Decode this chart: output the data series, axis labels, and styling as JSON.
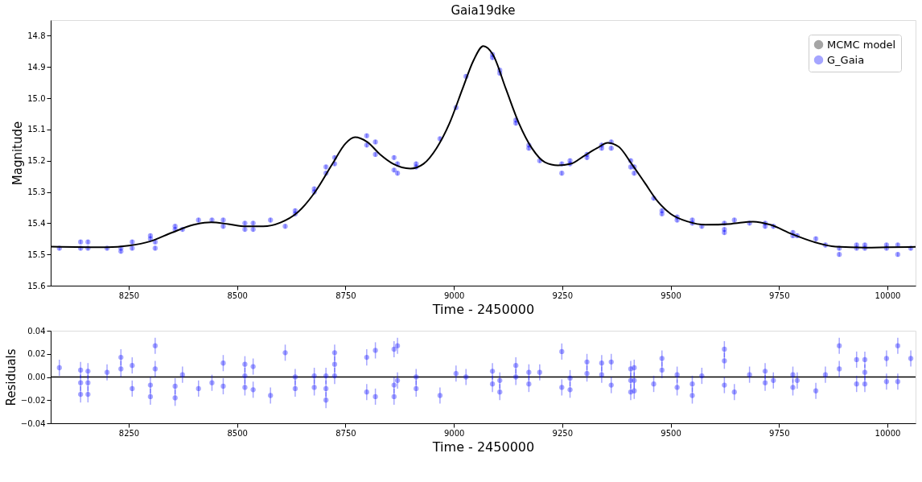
{
  "chart_data": [
    {
      "type": "scatter",
      "title": "Gaia19dke",
      "xlabel": "Time - 2450000",
      "ylabel": "Magnitude",
      "legend": "top right",
      "xlim": [
        8070,
        10065
      ],
      "xticks": [
        8250,
        8500,
        8750,
        9000,
        9250,
        9500,
        9750,
        10000
      ],
      "ylim": [
        15.6,
        14.75
      ],
      "yticks": [
        14.8,
        14.9,
        {
          "value": 15.0,
          "label": "15.0"
        },
        15.1,
        15.2,
        15.3,
        15.4,
        15.5,
        15.6
      ],
      "series": [
        {
          "name": "MCMC model",
          "type": "line",
          "color": "#000000",
          "line_style": "solid",
          "x": [
            8070,
            8200,
            8250,
            8300,
            8350,
            8400,
            8440,
            8480,
            8520,
            8560,
            8600,
            8640,
            8680,
            8720,
            8750,
            8772,
            8800,
            8830,
            8860,
            8900,
            8930,
            8960,
            8990,
            9020,
            9045,
            9068,
            9090,
            9120,
            9150,
            9180,
            9210,
            9240,
            9270,
            9300,
            9330,
            9355,
            9380,
            9410,
            9440,
            9470,
            9500,
            9540,
            9580,
            9640,
            9690,
            9730,
            9780,
            9830,
            9880,
            9950,
            10000,
            10065
          ],
          "values": [
            15.475,
            15.477,
            15.472,
            15.458,
            15.43,
            15.405,
            15.397,
            15.403,
            15.41,
            15.41,
            15.398,
            15.365,
            15.3,
            15.21,
            15.145,
            15.125,
            15.14,
            15.18,
            15.21,
            15.225,
            15.21,
            15.16,
            15.08,
            14.97,
            14.88,
            14.833,
            14.86,
            14.97,
            15.08,
            15.16,
            15.205,
            15.215,
            15.21,
            15.185,
            15.16,
            15.143,
            15.155,
            15.21,
            15.27,
            15.33,
            15.37,
            15.395,
            15.405,
            15.402,
            15.395,
            15.405,
            15.435,
            15.46,
            15.475,
            15.478,
            15.477,
            15.476
          ]
        },
        {
          "name": "G_Gaia",
          "marker": "circle",
          "color": "#0000ff",
          "x": [
            8090,
            8139,
            8139,
            8156,
            8156,
            8200,
            8232,
            8232,
            8258,
            8258,
            8300,
            8300,
            8311,
            8311,
            8357,
            8357,
            8374,
            8411,
            8442,
            8468,
            8468,
            8518,
            8518,
            8537,
            8537,
            8577,
            8611,
            8634,
            8634,
            8678,
            8678,
            8705,
            8705,
            8725,
            8725,
            8799,
            8799,
            8819,
            8819,
            8862,
            8862,
            8870,
            8870,
            8913,
            8913,
            8968,
            9005,
            9028,
            9089,
            9089,
            9106,
            9106,
            9143,
            9143,
            9173,
            9173,
            9198,
            9249,
            9249,
            9268,
            9268,
            9307,
            9307,
            9341,
            9341,
            9363,
            9363,
            9408,
            9408,
            9416,
            9416,
            9461,
            9480,
            9480,
            9515,
            9515,
            9550,
            9550,
            9572,
            9624,
            9624,
            9624,
            9647,
            9682,
            9718,
            9718,
            9737,
            9782,
            9782,
            9792,
            9835,
            9857,
            9889,
            9889,
            9929,
            9929,
            9948,
            9948,
            9998,
            9998,
            10024,
            10024,
            10054
          ],
          "values": [
            15.48,
            15.46,
            15.48,
            15.46,
            15.48,
            15.48,
            15.49,
            15.48,
            15.46,
            15.48,
            15.44,
            15.45,
            15.46,
            15.48,
            15.41,
            15.42,
            15.42,
            15.39,
            15.39,
            15.39,
            15.41,
            15.4,
            15.42,
            15.4,
            15.42,
            15.39,
            15.41,
            15.36,
            15.37,
            15.29,
            15.3,
            15.22,
            15.24,
            15.19,
            15.21,
            15.12,
            15.15,
            15.14,
            15.18,
            15.19,
            15.23,
            15.21,
            15.24,
            15.21,
            15.22,
            15.13,
            15.03,
            14.93,
            14.86,
            14.87,
            14.91,
            14.92,
            15.07,
            15.08,
            15.15,
            15.16,
            15.2,
            15.21,
            15.24,
            15.2,
            15.21,
            15.18,
            15.19,
            15.15,
            15.16,
            15.14,
            15.16,
            15.2,
            15.22,
            15.22,
            15.24,
            15.32,
            15.36,
            15.37,
            15.38,
            15.39,
            15.39,
            15.4,
            15.41,
            15.4,
            15.42,
            15.43,
            15.39,
            15.4,
            15.4,
            15.41,
            15.41,
            15.43,
            15.44,
            15.44,
            15.45,
            15.47,
            15.48,
            15.5,
            15.47,
            15.48,
            15.47,
            15.48,
            15.47,
            15.48,
            15.47,
            15.5,
            15.48
          ],
          "errors": [
            0.007,
            0.007,
            0.007,
            0.007,
            0.007,
            0.007,
            0.007,
            0.007,
            0.007,
            0.007,
            0.007,
            0.007,
            0.007,
            0.007,
            0.007,
            0.007,
            0.007,
            0.007,
            0.007,
            0.007,
            0.007,
            0.007,
            0.007,
            0.007,
            0.007,
            0.007,
            0.007,
            0.007,
            0.007,
            0.007,
            0.007,
            0.007,
            0.007,
            0.007,
            0.007,
            0.007,
            0.007,
            0.007,
            0.007,
            0.007,
            0.007,
            0.007,
            0.007,
            0.007,
            0.007,
            0.007,
            0.007,
            0.007,
            0.007,
            0.007,
            0.007,
            0.007,
            0.007,
            0.007,
            0.007,
            0.007,
            0.007,
            0.007,
            0.007,
            0.007,
            0.007,
            0.007,
            0.007,
            0.007,
            0.007,
            0.007,
            0.007,
            0.007,
            0.007,
            0.007,
            0.007,
            0.007,
            0.007,
            0.007,
            0.007,
            0.007,
            0.007,
            0.007,
            0.007,
            0.007,
            0.007,
            0.007,
            0.007,
            0.007,
            0.007,
            0.007,
            0.007,
            0.007,
            0.007,
            0.007,
            0.007,
            0.007,
            0.007,
            0.007,
            0.007,
            0.007,
            0.007,
            0.007,
            0.007,
            0.007,
            0.007,
            0.007,
            0.007
          ]
        }
      ]
    },
    {
      "type": "scatter",
      "xlabel": "Time - 2450000",
      "ylabel": "Residuals",
      "xlim": [
        8070,
        10065
      ],
      "xticks": [
        8250,
        8500,
        8750,
        9000,
        9250,
        9500,
        9750,
        10000
      ],
      "ylim": [
        -0.04,
        0.04
      ],
      "yticks": [
        {
          "value": -0.04,
          "label": "−0.04"
        },
        {
          "value": -0.02,
          "label": "−0.02"
        },
        {
          "value": 0,
          "label": "0.00"
        },
        {
          "value": 0.02,
          "label": "0.02"
        },
        {
          "value": 0.04,
          "label": "0.04"
        }
      ],
      "ref_lines": [
        {
          "axis": "y",
          "value": 0,
          "color": "#000000",
          "line_style": "solid"
        }
      ],
      "series": [
        {
          "marker": "circle",
          "color": "#0000ff",
          "x": [
            8090,
            8139,
            8139,
            8139,
            8156,
            8156,
            8156,
            8200,
            8232,
            8232,
            8258,
            8258,
            8300,
            8300,
            8311,
            8311,
            8357,
            8357,
            8374,
            8411,
            8442,
            8468,
            8468,
            8518,
            8518,
            8518,
            8537,
            8537,
            8577,
            8611,
            8634,
            8634,
            8678,
            8678,
            8705,
            8705,
            8705,
            8725,
            8725,
            8725,
            8799,
            8799,
            8819,
            8819,
            8862,
            8862,
            8862,
            8870,
            8870,
            8913,
            8913,
            8968,
            9005,
            9028,
            9089,
            9089,
            9106,
            9106,
            9143,
            9143,
            9173,
            9173,
            9198,
            9249,
            9249,
            9268,
            9268,
            9307,
            9307,
            9341,
            9341,
            9363,
            9363,
            9408,
            9408,
            9408,
            9416,
            9416,
            9416,
            9461,
            9480,
            9480,
            9515,
            9515,
            9550,
            9550,
            9572,
            9624,
            9624,
            9624,
            9647,
            9682,
            9718,
            9718,
            9737,
            9782,
            9782,
            9792,
            9835,
            9857,
            9889,
            9889,
            9929,
            9929,
            9948,
            9948,
            9948,
            9998,
            9998,
            10024,
            10024,
            10054
          ],
          "values": [
            0.008,
            0.006,
            -0.005,
            -0.015,
            0.005,
            -0.005,
            -0.015,
            0.004,
            0.017,
            0.007,
            0.01,
            -0.01,
            -0.007,
            -0.017,
            0.027,
            0.007,
            -0.008,
            -0.018,
            0.002,
            -0.01,
            -0.005,
            0.012,
            -0.008,
            0.011,
            0.001,
            -0.009,
            0.009,
            -0.011,
            -0.016,
            0.021,
            0.0,
            -0.01,
            0.001,
            -0.009,
            0.001,
            -0.01,
            -0.02,
            0.021,
            0.011,
            0.001,
            0.017,
            -0.013,
            0.023,
            -0.017,
            0.024,
            -0.007,
            -0.017,
            0.027,
            -0.003,
            0.0,
            -0.01,
            -0.016,
            0.003,
            0.0,
            0.005,
            -0.006,
            -0.003,
            -0.013,
            0.01,
            0.0,
            0.004,
            -0.006,
            0.004,
            0.022,
            -0.009,
            -0.001,
            -0.011,
            0.013,
            0.003,
            0.012,
            0.002,
            0.013,
            -0.007,
            0.007,
            -0.003,
            -0.013,
            0.008,
            -0.003,
            -0.012,
            -0.006,
            0.016,
            0.006,
            0.002,
            -0.009,
            -0.006,
            -0.016,
            0.001,
            0.024,
            0.014,
            -0.007,
            -0.013,
            0.002,
            0.005,
            -0.005,
            -0.003,
            0.002,
            -0.009,
            -0.003,
            -0.012,
            0.002,
            0.027,
            0.007,
            0.015,
            -0.006,
            0.015,
            0.004,
            -0.006,
            0.016,
            -0.004,
            0.027,
            -0.004,
            0.016
          ],
          "errors": [
            0.007,
            0.007,
            0.007,
            0.007,
            0.007,
            0.007,
            0.007,
            0.007,
            0.007,
            0.007,
            0.007,
            0.007,
            0.007,
            0.007,
            0.007,
            0.007,
            0.007,
            0.007,
            0.007,
            0.007,
            0.007,
            0.007,
            0.007,
            0.007,
            0.007,
            0.007,
            0.007,
            0.007,
            0.007,
            0.007,
            0.007,
            0.007,
            0.007,
            0.007,
            0.007,
            0.007,
            0.007,
            0.007,
            0.007,
            0.007,
            0.007,
            0.007,
            0.007,
            0.007,
            0.007,
            0.007,
            0.007,
            0.007,
            0.007,
            0.007,
            0.007,
            0.007,
            0.007,
            0.007,
            0.007,
            0.007,
            0.007,
            0.007,
            0.007,
            0.007,
            0.007,
            0.007,
            0.007,
            0.007,
            0.007,
            0.007,
            0.007,
            0.007,
            0.007,
            0.007,
            0.007,
            0.007,
            0.007,
            0.007,
            0.007,
            0.007,
            0.007,
            0.007,
            0.007,
            0.007,
            0.007,
            0.007,
            0.007,
            0.007,
            0.007,
            0.007,
            0.007,
            0.007,
            0.007,
            0.007,
            0.007,
            0.007,
            0.007,
            0.007,
            0.007,
            0.007,
            0.007,
            0.007,
            0.007,
            0.007,
            0.007,
            0.007,
            0.007,
            0.007,
            0.007,
            0.007,
            0.007,
            0.007,
            0.007,
            0.007,
            0.007,
            0.007
          ]
        }
      ]
    }
  ]
}
